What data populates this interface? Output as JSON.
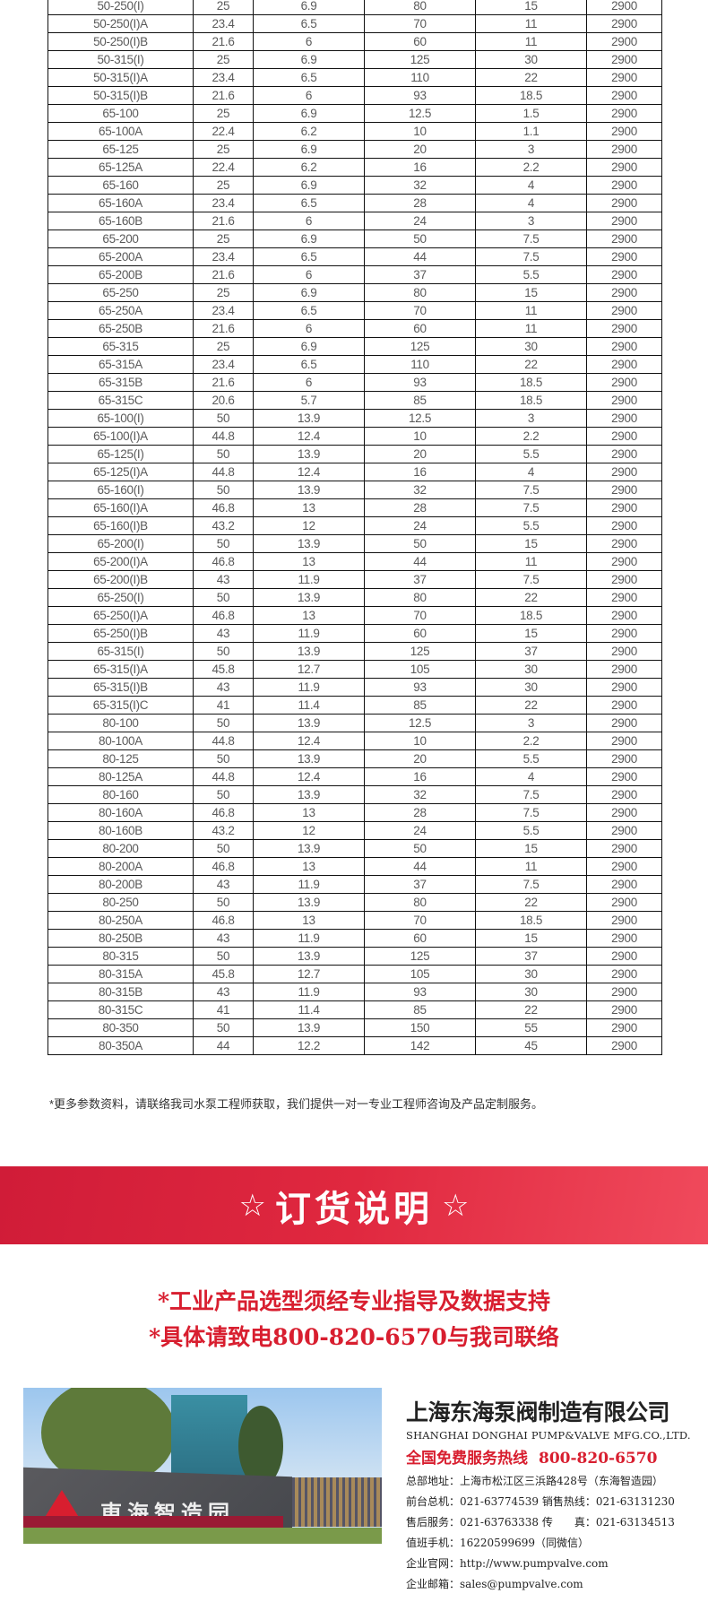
{
  "table": {
    "rows": [
      [
        "50-250(I)",
        "25",
        "6.9",
        "80",
        "15",
        "2900"
      ],
      [
        "50-250(I)A",
        "23.4",
        "6.5",
        "70",
        "11",
        "2900"
      ],
      [
        "50-250(I)B",
        "21.6",
        "6",
        "60",
        "11",
        "2900"
      ],
      [
        "50-315(I)",
        "25",
        "6.9",
        "125",
        "30",
        "2900"
      ],
      [
        "50-315(I)A",
        "23.4",
        "6.5",
        "110",
        "22",
        "2900"
      ],
      [
        "50-315(I)B",
        "21.6",
        "6",
        "93",
        "18.5",
        "2900"
      ],
      [
        "65-100",
        "25",
        "6.9",
        "12.5",
        "1.5",
        "2900"
      ],
      [
        "65-100A",
        "22.4",
        "6.2",
        "10",
        "1.1",
        "2900"
      ],
      [
        "65-125",
        "25",
        "6.9",
        "20",
        "3",
        "2900"
      ],
      [
        "65-125A",
        "22.4",
        "6.2",
        "16",
        "2.2",
        "2900"
      ],
      [
        "65-160",
        "25",
        "6.9",
        "32",
        "4",
        "2900"
      ],
      [
        "65-160A",
        "23.4",
        "6.5",
        "28",
        "4",
        "2900"
      ],
      [
        "65-160B",
        "21.6",
        "6",
        "24",
        "3",
        "2900"
      ],
      [
        "65-200",
        "25",
        "6.9",
        "50",
        "7.5",
        "2900"
      ],
      [
        "65-200A",
        "23.4",
        "6.5",
        "44",
        "7.5",
        "2900"
      ],
      [
        "65-200B",
        "21.6",
        "6",
        "37",
        "5.5",
        "2900"
      ],
      [
        "65-250",
        "25",
        "6.9",
        "80",
        "15",
        "2900"
      ],
      [
        "65-250A",
        "23.4",
        "6.5",
        "70",
        "11",
        "2900"
      ],
      [
        "65-250B",
        "21.6",
        "6",
        "60",
        "11",
        "2900"
      ],
      [
        "65-315",
        "25",
        "6.9",
        "125",
        "30",
        "2900"
      ],
      [
        "65-315A",
        "23.4",
        "6.5",
        "110",
        "22",
        "2900"
      ],
      [
        "65-315B",
        "21.6",
        "6",
        "93",
        "18.5",
        "2900"
      ],
      [
        "65-315C",
        "20.6",
        "5.7",
        "85",
        "18.5",
        "2900"
      ],
      [
        "65-100(I)",
        "50",
        "13.9",
        "12.5",
        "3",
        "2900"
      ],
      [
        "65-100(I)A",
        "44.8",
        "12.4",
        "10",
        "2.2",
        "2900"
      ],
      [
        "65-125(I)",
        "50",
        "13.9",
        "20",
        "5.5",
        "2900"
      ],
      [
        "65-125(I)A",
        "44.8",
        "12.4",
        "16",
        "4",
        "2900"
      ],
      [
        "65-160(I)",
        "50",
        "13.9",
        "32",
        "7.5",
        "2900"
      ],
      [
        "65-160(I)A",
        "46.8",
        "13",
        "28",
        "7.5",
        "2900"
      ],
      [
        "65-160(I)B",
        "43.2",
        "12",
        "24",
        "5.5",
        "2900"
      ],
      [
        "65-200(I)",
        "50",
        "13.9",
        "50",
        "15",
        "2900"
      ],
      [
        "65-200(I)A",
        "46.8",
        "13",
        "44",
        "11",
        "2900"
      ],
      [
        "65-200(I)B",
        "43",
        "11.9",
        "37",
        "7.5",
        "2900"
      ],
      [
        "65-250(I)",
        "50",
        "13.9",
        "80",
        "22",
        "2900"
      ],
      [
        "65-250(I)A",
        "46.8",
        "13",
        "70",
        "18.5",
        "2900"
      ],
      [
        "65-250(I)B",
        "43",
        "11.9",
        "60",
        "15",
        "2900"
      ],
      [
        "65-315(I)",
        "50",
        "13.9",
        "125",
        "37",
        "2900"
      ],
      [
        "65-315(I)A",
        "45.8",
        "12.7",
        "105",
        "30",
        "2900"
      ],
      [
        "65-315(I)B",
        "43",
        "11.9",
        "93",
        "30",
        "2900"
      ],
      [
        "65-315(I)C",
        "41",
        "11.4",
        "85",
        "22",
        "2900"
      ],
      [
        "80-100",
        "50",
        "13.9",
        "12.5",
        "3",
        "2900"
      ],
      [
        "80-100A",
        "44.8",
        "12.4",
        "10",
        "2.2",
        "2900"
      ],
      [
        "80-125",
        "50",
        "13.9",
        "20",
        "5.5",
        "2900"
      ],
      [
        "80-125A",
        "44.8",
        "12.4",
        "16",
        "4",
        "2900"
      ],
      [
        "80-160",
        "50",
        "13.9",
        "32",
        "7.5",
        "2900"
      ],
      [
        "80-160A",
        "46.8",
        "13",
        "28",
        "7.5",
        "2900"
      ],
      [
        "80-160B",
        "43.2",
        "12",
        "24",
        "5.5",
        "2900"
      ],
      [
        "80-200",
        "50",
        "13.9",
        "50",
        "15",
        "2900"
      ],
      [
        "80-200A",
        "46.8",
        "13",
        "44",
        "11",
        "2900"
      ],
      [
        "80-200B",
        "43",
        "11.9",
        "37",
        "7.5",
        "2900"
      ],
      [
        "80-250",
        "50",
        "13.9",
        "80",
        "22",
        "2900"
      ],
      [
        "80-250A",
        "46.8",
        "13",
        "70",
        "18.5",
        "2900"
      ],
      [
        "80-250B",
        "43",
        "11.9",
        "60",
        "15",
        "2900"
      ],
      [
        "80-315",
        "50",
        "13.9",
        "125",
        "37",
        "2900"
      ],
      [
        "80-315A",
        "45.8",
        "12.7",
        "105",
        "30",
        "2900"
      ],
      [
        "80-315B",
        "43",
        "11.9",
        "93",
        "30",
        "2900"
      ],
      [
        "80-315C",
        "41",
        "11.4",
        "85",
        "22",
        "2900"
      ],
      [
        "80-350",
        "50",
        "13.9",
        "150",
        "55",
        "2900"
      ],
      [
        "80-350A",
        "44",
        "12.2",
        "142",
        "45",
        "2900"
      ]
    ]
  },
  "footnote": "*更多参数资料，请联络我司水泵工程师获取，我们提供一对一专业工程师咨询及产品定制服务。",
  "banner": {
    "star": "☆",
    "title": "订货说明",
    "gradient": [
      "#d01c38",
      "#f04a5c"
    ]
  },
  "notice": {
    "line1": "*工业产品选型须经专业指导及数据支持",
    "line2": "*具体请致电800-820-6570与我司联络",
    "color": "#d81e2f"
  },
  "photo": {
    "sign_text": "東海智造园"
  },
  "company": {
    "name": "上海东海泵阀制造有限公司",
    "english_name": "SHANGHAI DONGHAI PUMP&VALVE MFG.CO.,LTD.",
    "hotline_label": "全国免费服务热线",
    "hotline": "800-820-6570",
    "address": "总部地址：上海市松江区三浜路428号（东海智造园）",
    "front_desk": "前台总机：021-63774539   销售热线：021-63131230",
    "after_sales": "售后服务：021-63763338   传　　真：021-63134513",
    "mobile": "值班手机：16220599699（同微信）",
    "website": "企业官网：http://www.pumpvalve.com",
    "email": "企业邮箱：sales@pumpvalve.com"
  }
}
